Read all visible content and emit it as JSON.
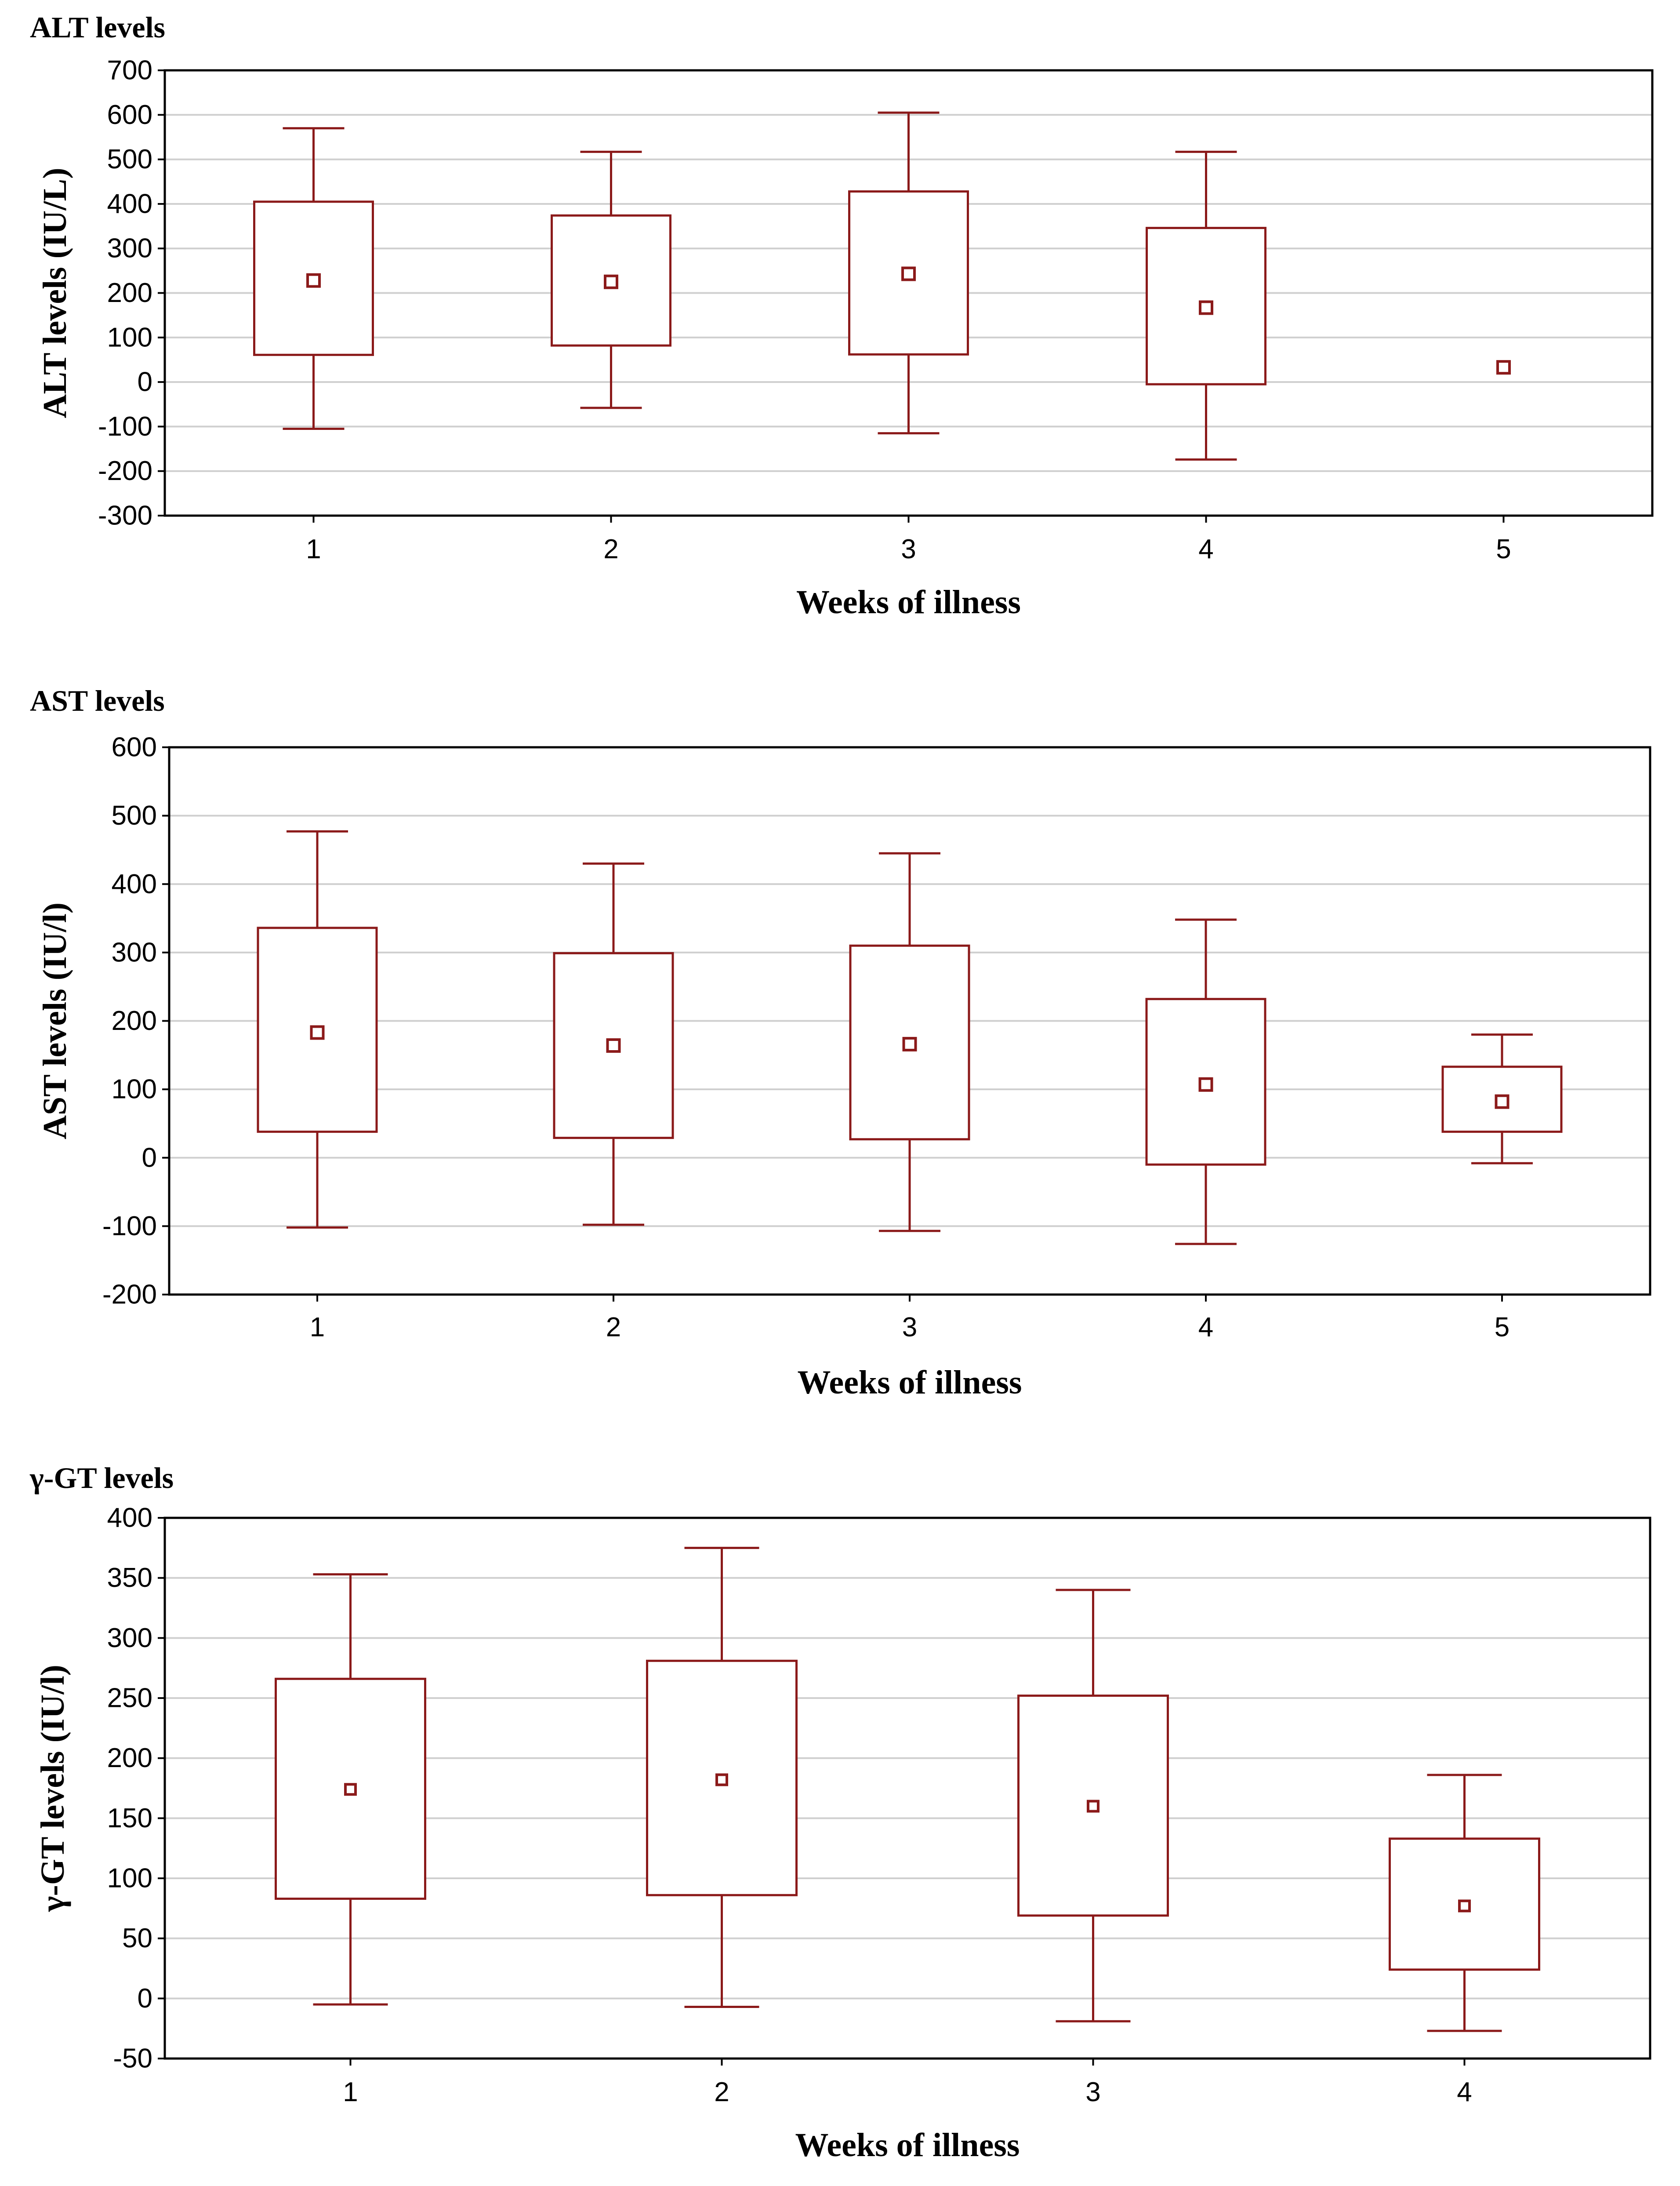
{
  "chart_data": [
    {
      "type": "boxplot",
      "title": "ALT levels",
      "xlabel": "Weeks of illness",
      "ylabel": "ALT levels (IU/L)",
      "categories": [
        "1",
        "2",
        "3",
        "4",
        "5"
      ],
      "ylim": [
        -300,
        700
      ],
      "yticks": [
        700,
        600,
        500,
        400,
        300,
        200,
        100,
        0,
        -100,
        -200,
        -300
      ],
      "grid": true,
      "color": "#8b1a1a",
      "boxes": [
        {
          "mean": 228,
          "box_low": 61,
          "box_high": 405,
          "whisker_low": -105,
          "whisker_high": 570
        },
        {
          "mean": 225,
          "box_low": 82,
          "box_high": 374,
          "whisker_low": -58,
          "whisker_high": 517
        },
        {
          "mean": 243,
          "box_low": 62,
          "box_high": 428,
          "whisker_low": -115,
          "whisker_high": 605
        },
        {
          "mean": 167,
          "box_low": -5,
          "box_high": 346,
          "whisker_low": -174,
          "whisker_high": 517
        },
        {
          "mean": 33
        }
      ]
    },
    {
      "type": "boxplot",
      "title": "AST levels",
      "xlabel": "Weeks of illness",
      "ylabel": "AST levels (IU/l)",
      "categories": [
        "1",
        "2",
        "3",
        "4",
        "5"
      ],
      "ylim": [
        -200,
        600
      ],
      "yticks": [
        600,
        500,
        400,
        300,
        200,
        100,
        0,
        -100,
        -200
      ],
      "grid": true,
      "color": "#8b1a1a",
      "boxes": [
        {
          "mean": 183,
          "box_low": 38,
          "box_high": 336,
          "whisker_low": -102,
          "whisker_high": 477
        },
        {
          "mean": 164,
          "box_low": 29,
          "box_high": 299,
          "whisker_low": -98,
          "whisker_high": 430
        },
        {
          "mean": 166,
          "box_low": 27,
          "box_high": 310,
          "whisker_low": -107,
          "whisker_high": 445
        },
        {
          "mean": 107,
          "box_low": -10,
          "box_high": 232,
          "whisker_low": -126,
          "whisker_high": 348
        },
        {
          "mean": 82,
          "box_low": 38,
          "box_high": 133,
          "whisker_low": -8,
          "whisker_high": 180
        }
      ]
    },
    {
      "type": "boxplot",
      "title": "γ-GT levels",
      "xlabel": "Weeks of illness",
      "ylabel": "γ-GT levels (IU/l)",
      "categories": [
        "1",
        "2",
        "3",
        "4"
      ],
      "ylim": [
        -50,
        400
      ],
      "yticks": [
        400,
        350,
        300,
        250,
        200,
        150,
        100,
        50,
        0,
        -50
      ],
      "grid": true,
      "color": "#8b1a1a",
      "boxes": [
        {
          "mean": 174,
          "box_low": 83,
          "box_high": 266,
          "whisker_low": -5,
          "whisker_high": 353
        },
        {
          "mean": 182,
          "box_low": 86,
          "box_high": 281,
          "whisker_low": -7,
          "whisker_high": 375
        },
        {
          "mean": 160,
          "box_low": 69,
          "box_high": 252,
          "whisker_low": -19,
          "whisker_high": 340
        },
        {
          "mean": 77,
          "box_low": 24,
          "box_high": 133,
          "whisker_low": -27,
          "whisker_high": 186
        }
      ]
    }
  ]
}
